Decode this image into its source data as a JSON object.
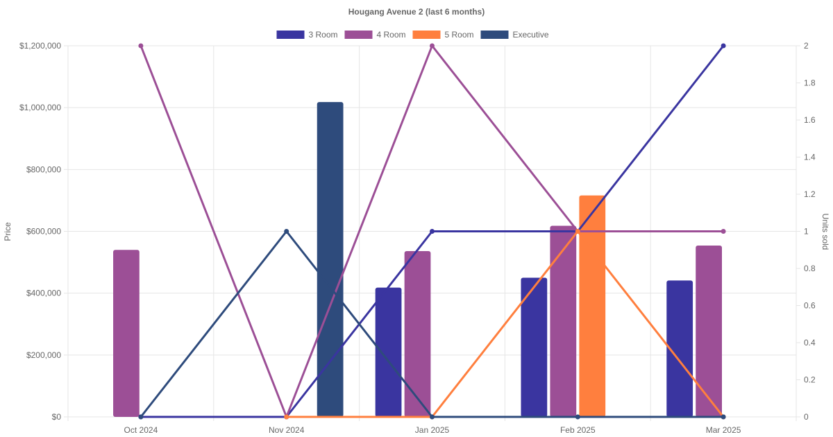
{
  "chart_data": {
    "type": "bar",
    "title": "Hougang Avenue 2 (last 6 months)",
    "categories": [
      "Oct 2024",
      "Nov 2024",
      "Jan 2025",
      "Feb 2025",
      "Mar 2025"
    ],
    "y_left": {
      "label": "Price",
      "ylim": [
        0,
        1200000
      ],
      "ticks": [
        0,
        200000,
        400000,
        600000,
        800000,
        1000000,
        1200000
      ],
      "tick_labels": [
        "$0",
        "$200,000",
        "$400,000",
        "$600,000",
        "$800,000",
        "$1,000,000",
        "$1,200,000"
      ]
    },
    "y_right": {
      "label": "Units sold",
      "ylim": [
        0,
        2
      ],
      "ticks": [
        0,
        0.2,
        0.4,
        0.6,
        0.8,
        1,
        1.2,
        1.4,
        1.6,
        1.8,
        2
      ],
      "tick_labels": [
        "0",
        "0.2",
        "0.4",
        "0.6",
        "0.8",
        "1",
        "1.2",
        "1.4",
        "1.6",
        "1.8",
        "2"
      ]
    },
    "grid": true,
    "legend_position": "top",
    "series": [
      {
        "name": "3 Room",
        "color": "#3a35a0",
        "price": [
          null,
          null,
          418000,
          450000,
          441000
        ],
        "units": [
          0,
          0,
          1,
          1,
          2
        ]
      },
      {
        "name": "4 Room",
        "color": "#9c4f96",
        "price": [
          540000,
          null,
          536000,
          618000,
          554000
        ],
        "units": [
          2,
          0,
          2,
          1,
          1
        ]
      },
      {
        "name": "5 Room",
        "color": "#ff7f3e",
        "price": [
          null,
          null,
          null,
          716000,
          null
        ],
        "units": [
          null,
          0,
          0,
          1,
          0
        ]
      },
      {
        "name": "Executive",
        "color": "#2e4b7c",
        "price": [
          null,
          1018000,
          null,
          null,
          null
        ],
        "units": [
          0,
          1,
          0,
          0,
          0
        ]
      }
    ]
  }
}
